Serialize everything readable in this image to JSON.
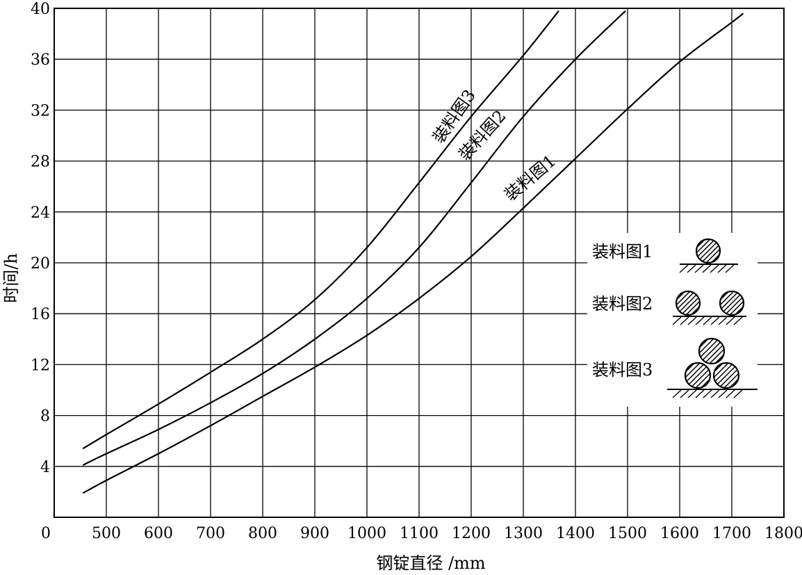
{
  "chart_data": {
    "type": "line",
    "title": "",
    "xlabel": "钢锭直径 /mm",
    "ylabel": "时间/h",
    "xlim": [
      400,
      1800
    ],
    "ylim": [
      0,
      40
    ],
    "grid": true,
    "x_ticks": [
      "0",
      "500",
      "600",
      "700",
      "800",
      "900",
      "1000",
      "1100",
      "1200",
      "1300",
      "1400",
      "1500",
      "1600",
      "1700",
      "1800"
    ],
    "y_ticks": [
      "4",
      "8",
      "12",
      "16",
      "20",
      "24",
      "28",
      "32",
      "36",
      "40"
    ],
    "series": [
      {
        "name": "装料图1",
        "x": [
          455,
          500,
          600,
          700,
          800,
          900,
          1000,
          1100,
          1200,
          1300,
          1400,
          1500,
          1600,
          1700,
          1722
        ],
        "y": [
          1.9,
          2.9,
          5.0,
          7.2,
          9.5,
          11.8,
          14.3,
          17.2,
          20.5,
          24.3,
          28.2,
          32.1,
          35.8,
          38.9,
          39.6
        ]
      },
      {
        "name": "装料图2",
        "x": [
          455,
          500,
          600,
          700,
          800,
          900,
          1000,
          1100,
          1200,
          1300,
          1400,
          1496
        ],
        "y": [
          4.1,
          5.0,
          6.9,
          9.0,
          11.3,
          14.0,
          17.2,
          21.2,
          26.3,
          31.5,
          36.0,
          39.8
        ]
      },
      {
        "name": "装料图3",
        "x": [
          455,
          500,
          600,
          700,
          800,
          900,
          1000,
          1100,
          1200,
          1300,
          1368
        ],
        "y": [
          5.4,
          6.5,
          8.9,
          11.4,
          14.0,
          17.1,
          21.2,
          26.3,
          31.5,
          36.3,
          39.8
        ]
      }
    ],
    "curve_labels": [
      "装料图1",
      "装料图2",
      "装料图3"
    ],
    "legend": {
      "placement": "right",
      "items": [
        {
          "label": "装料图1",
          "balls": 1
        },
        {
          "label": "装料图2",
          "balls": 2
        },
        {
          "label": "装料图3",
          "balls": 3
        }
      ]
    }
  }
}
